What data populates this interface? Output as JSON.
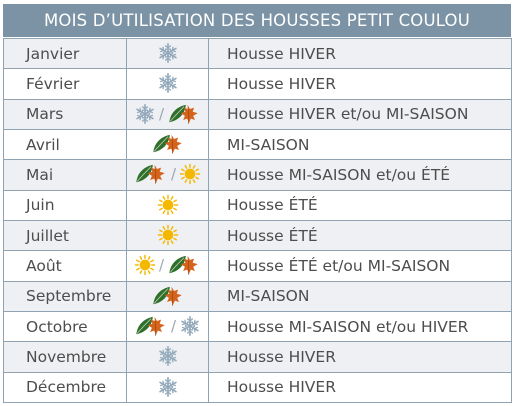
{
  "title": "MOIS D’UTILISATION DES HOUSSES PETIT COULOU",
  "icon_names": {
    "snow": "snowflake-icon",
    "leaf": "autumn-leaves-icon",
    "sun": "sun-icon"
  },
  "colors": {
    "header_bg": "#7b93a5",
    "border": "#8fa3b2",
    "text": "#4d4d4d",
    "snow": "#93a9bb",
    "leaf_green": "#2f6f2a",
    "leaf_orange": "#d4641c",
    "sun": "#f5b800"
  },
  "rows": [
    {
      "month": "Janvier",
      "icons": [
        "snow"
      ],
      "desc": "Housse HIVER"
    },
    {
      "month": "Février",
      "icons": [
        "snow"
      ],
      "desc": "Housse HIVER"
    },
    {
      "month": "Mars",
      "icons": [
        "snow",
        "leaf"
      ],
      "desc": "Housse HIVER et/ou MI-SAISON"
    },
    {
      "month": "Avril",
      "icons": [
        "leaf"
      ],
      "desc": "MI-SAISON"
    },
    {
      "month": "Mai",
      "icons": [
        "leaf",
        "sun"
      ],
      "desc": "Housse MI-SAISON et/ou ÉTÉ"
    },
    {
      "month": "Juin",
      "icons": [
        "sun"
      ],
      "desc": "Housse ÉTÉ"
    },
    {
      "month": "Juillet",
      "icons": [
        "sun"
      ],
      "desc": "Housse ÉTÉ"
    },
    {
      "month": "Août",
      "icons": [
        "sun",
        "leaf"
      ],
      "desc": "Housse ÉTÉ et/ou MI-SAISON"
    },
    {
      "month": "Septembre",
      "icons": [
        "leaf"
      ],
      "desc": "MI-SAISON"
    },
    {
      "month": "Octobre",
      "icons": [
        "leaf",
        "snow"
      ],
      "desc": "Housse MI-SAISON et/ou HIVER"
    },
    {
      "month": "Novembre",
      "icons": [
        "snow"
      ],
      "desc": "Housse HIVER"
    },
    {
      "month": "Décembre",
      "icons": [
        "snow"
      ],
      "desc": "Housse HIVER"
    }
  ]
}
